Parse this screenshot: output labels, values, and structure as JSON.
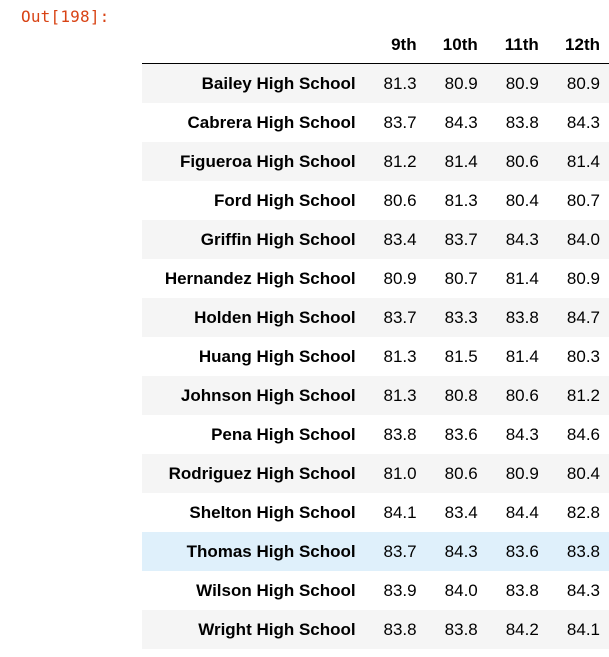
{
  "output_prompt": "Out[198]:",
  "table": {
    "index_header": "",
    "columns": [
      "9th",
      "10th",
      "11th",
      "12th"
    ],
    "highlighted_row": 12,
    "rows": [
      {
        "school": "Bailey High School",
        "values": [
          "81.3",
          "80.9",
          "80.9",
          "80.9"
        ]
      },
      {
        "school": "Cabrera High School",
        "values": [
          "83.7",
          "84.3",
          "83.8",
          "84.3"
        ]
      },
      {
        "school": "Figueroa High School",
        "values": [
          "81.2",
          "81.4",
          "80.6",
          "81.4"
        ]
      },
      {
        "school": "Ford High School",
        "values": [
          "80.6",
          "81.3",
          "80.4",
          "80.7"
        ]
      },
      {
        "school": "Griffin High School",
        "values": [
          "83.4",
          "83.7",
          "84.3",
          "84.0"
        ]
      },
      {
        "school": "Hernandez High School",
        "values": [
          "80.9",
          "80.7",
          "81.4",
          "80.9"
        ]
      },
      {
        "school": "Holden High School",
        "values": [
          "83.7",
          "83.3",
          "83.8",
          "84.7"
        ]
      },
      {
        "school": "Huang High School",
        "values": [
          "81.3",
          "81.5",
          "81.4",
          "80.3"
        ]
      },
      {
        "school": "Johnson High School",
        "values": [
          "81.3",
          "80.8",
          "80.6",
          "81.2"
        ]
      },
      {
        "school": "Pena High School",
        "values": [
          "83.8",
          "83.6",
          "84.3",
          "84.6"
        ]
      },
      {
        "school": "Rodriguez High School",
        "values": [
          "81.0",
          "80.6",
          "80.9",
          "80.4"
        ]
      },
      {
        "school": "Shelton High School",
        "values": [
          "84.1",
          "83.4",
          "84.4",
          "82.8"
        ]
      },
      {
        "school": "Thomas High School",
        "values": [
          "83.7",
          "84.3",
          "83.6",
          "83.8"
        ]
      },
      {
        "school": "Wilson High School",
        "values": [
          "83.9",
          "84.0",
          "83.8",
          "84.3"
        ]
      },
      {
        "school": "Wright High School",
        "values": [
          "83.8",
          "83.8",
          "84.2",
          "84.1"
        ]
      }
    ]
  },
  "colors": {
    "prompt": "#d84315",
    "row_odd": "#f5f5f5",
    "row_even": "#ffffff",
    "row_hover": "#dff0fb"
  }
}
